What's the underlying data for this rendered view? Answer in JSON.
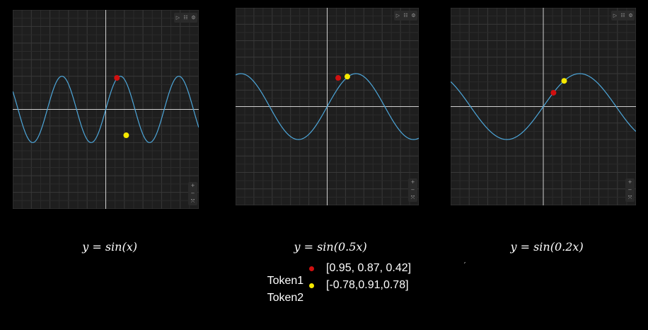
{
  "chart_data": [
    {
      "type": "line",
      "formula": "y = sin(x)",
      "k": 1,
      "xlim": [
        -10,
        10
      ],
      "ylim": [
        -3,
        3
      ],
      "series": [
        {
          "color": "#4da6d9"
        }
      ],
      "points": [
        {
          "x": 1.2,
          "y": 0.95,
          "color": "#d01010"
        },
        {
          "x": 2.2,
          "y": -0.78,
          "color": "#f5e800"
        }
      ]
    },
    {
      "type": "line",
      "formula": "y = sin(0.5x)",
      "k": 0.5,
      "xlim": [
        -10,
        10
      ],
      "ylim": [
        -3,
        3
      ],
      "series": [
        {
          "color": "#4da6d9"
        }
      ],
      "points": [
        {
          "x": 1.2,
          "y": 0.87,
          "color": "#d01010"
        },
        {
          "x": 2.2,
          "y": 0.91,
          "color": "#f5e800"
        }
      ]
    },
    {
      "type": "line",
      "formula": "y = sin(0.2x)",
      "k": 0.2,
      "xlim": [
        -20,
        20
      ],
      "ylim": [
        -3,
        3
      ],
      "series": [
        {
          "color": "#4da6d9"
        }
      ],
      "points": [
        {
          "x": 2.2,
          "y": 0.42,
          "color": "#d01010"
        },
        {
          "x": 4.5,
          "y": 0.78,
          "color": "#f5e800"
        }
      ]
    }
  ],
  "captions": [
    {
      "lhs": "y = ",
      "rhs": "sin(x)"
    },
    {
      "lhs": "y = ",
      "rhs": "sin(0.5x)"
    },
    {
      "lhs": "y = ",
      "rhs": "sin(0.2x)"
    }
  ],
  "legend": [
    {
      "label": "Token1",
      "color": "#d01010",
      "values": "[0.95, 0.87, 0.42]"
    },
    {
      "label": "Token2",
      "color": "#f5e800",
      "values": "[-0.78,0.91,0.78]"
    }
  ],
  "toolbar_icons": [
    "play-icon",
    "table-icon",
    "settings-icon"
  ],
  "zoom_icons": [
    "zoom-in-icon",
    "zoom-out-icon",
    "fit-icon"
  ],
  "stray_mark": "´"
}
